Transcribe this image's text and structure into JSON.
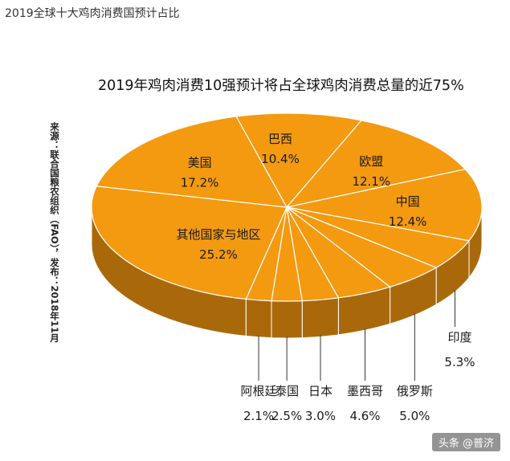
{
  "page_title": "2019全球十大鸡肉消费国预计占比",
  "source_note": "来源：联合国粮农组织（FAO），发布：2018年11月",
  "watermark": "头条 @普济",
  "colors": {
    "top": "#f39a11",
    "side": "#a9690b",
    "edge": "#ffffff",
    "leader": "#333333"
  },
  "chart_data": {
    "type": "pie",
    "title": "2019年鸡肉消费10强预计将占全球鸡肉消费总量的近75%",
    "slices": [
      {
        "label": "巴西",
        "percent": "10.4%",
        "value": 10.4
      },
      {
        "label": "欧盟",
        "percent": "12.1%",
        "value": 12.1
      },
      {
        "label": "中国",
        "percent": "12.4%",
        "value": 12.4
      },
      {
        "label": "印度",
        "percent": "5.3%",
        "value": 5.3
      },
      {
        "label": "俄罗斯",
        "percent": "5.0%",
        "value": 5.0
      },
      {
        "label": "墨西哥",
        "percent": "4.6%",
        "value": 4.6
      },
      {
        "label": "日本",
        "percent": "3.0%",
        "value": 3.0
      },
      {
        "label": "泰国",
        "percent": "2.5%",
        "value": 2.5
      },
      {
        "label": "阿根廷",
        "percent": "2.1%",
        "value": 2.1
      },
      {
        "label": "其他国家与地区",
        "percent": "25.2%",
        "value": 25.2
      },
      {
        "label": "美国",
        "percent": "17.2%",
        "value": 17.2
      }
    ]
  }
}
